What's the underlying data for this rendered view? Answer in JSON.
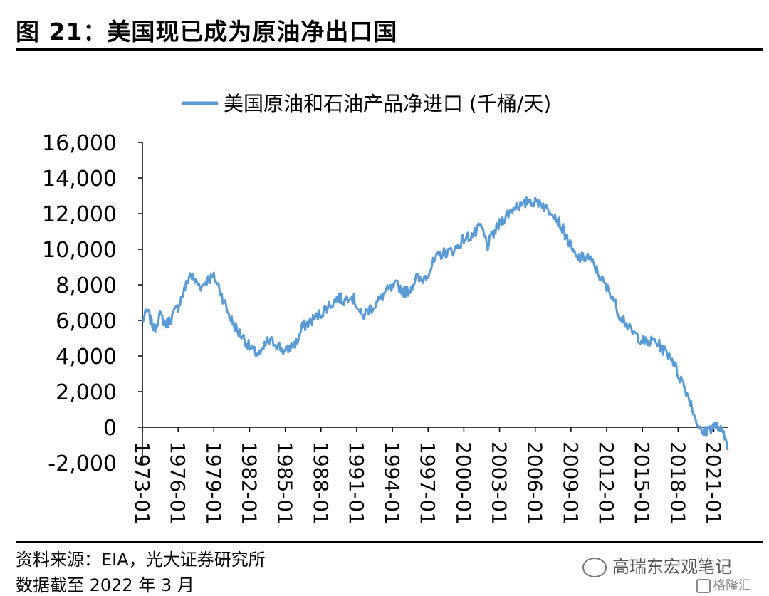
{
  "figure": {
    "title": "图 21：美国现已成为原油净出口国",
    "source": "资料来源：EIA，光大证券研究所",
    "date_note": "数据截至 2022 年 3 月",
    "watermark": "高瑞东宏观笔记",
    "logo_text": "格隆汇"
  },
  "colors": {
    "series": "#5b9bd5",
    "axis": "#000000"
  },
  "chart_data": {
    "type": "line",
    "title": "",
    "xlabel": "",
    "ylabel": "",
    "ylim": [
      -2000,
      16000
    ],
    "yticks": [
      "16,000",
      "14,000",
      "12,000",
      "10,000",
      "8,000",
      "6,000",
      "4,000",
      "2,000",
      "0",
      "-2,000"
    ],
    "ytick_values": [
      16000,
      14000,
      12000,
      10000,
      8000,
      6000,
      4000,
      2000,
      0,
      -2000
    ],
    "xticks": [
      "1973-01",
      "1976-01",
      "1979-01",
      "1982-01",
      "1985-01",
      "1988-01",
      "1991-01",
      "1994-01",
      "1997-01",
      "2000-01",
      "2003-01",
      "2006-01",
      "2009-01",
      "2012-01",
      "2015-01",
      "2018-01",
      "2021-01"
    ],
    "xtick_years": [
      1973,
      1976,
      1979,
      1982,
      1985,
      1988,
      1991,
      1994,
      1997,
      2000,
      2003,
      2006,
      2009,
      2012,
      2015,
      2018,
      2021
    ],
    "xlim": [
      "1973-01",
      "2022-03"
    ],
    "legend": "top-center",
    "grid": false,
    "series": [
      {
        "name": "美国原油和石油产品净进口 (千桶/天)",
        "x": [
          "1973-01",
          "1973-06",
          "1974-01",
          "1974-06",
          "1975-01",
          "1975-06",
          "1976-01",
          "1976-06",
          "1977-01",
          "1977-06",
          "1978-01",
          "1978-06",
          "1979-01",
          "1979-06",
          "1980-01",
          "1980-06",
          "1981-01",
          "1981-06",
          "1982-01",
          "1982-06",
          "1983-01",
          "1983-06",
          "1984-01",
          "1984-06",
          "1985-01",
          "1985-06",
          "1986-01",
          "1986-06",
          "1987-01",
          "1987-06",
          "1988-01",
          "1988-06",
          "1989-01",
          "1989-06",
          "1990-01",
          "1990-06",
          "1991-01",
          "1991-06",
          "1992-01",
          "1992-06",
          "1993-01",
          "1993-06",
          "1994-01",
          "1994-06",
          "1995-01",
          "1995-06",
          "1996-01",
          "1996-06",
          "1997-01",
          "1997-06",
          "1998-01",
          "1998-06",
          "1999-01",
          "1999-06",
          "2000-01",
          "2000-06",
          "2001-01",
          "2001-06",
          "2002-01",
          "2002-06",
          "2003-01",
          "2003-06",
          "2004-01",
          "2004-06",
          "2005-01",
          "2005-06",
          "2006-01",
          "2006-06",
          "2007-01",
          "2007-06",
          "2008-01",
          "2008-06",
          "2009-01",
          "2009-06",
          "2010-01",
          "2010-06",
          "2011-01",
          "2011-06",
          "2012-01",
          "2012-06",
          "2013-01",
          "2013-06",
          "2014-01",
          "2014-06",
          "2015-01",
          "2015-06",
          "2016-01",
          "2016-06",
          "2017-01",
          "2017-06",
          "2018-01",
          "2018-06",
          "2019-01",
          "2019-06",
          "2020-01",
          "2020-06",
          "2021-01",
          "2021-06",
          "2022-01",
          "2022-03"
        ],
        "y": [
          6000,
          6500,
          5500,
          6300,
          5800,
          6100,
          6800,
          7500,
          8600,
          8200,
          7900,
          8300,
          8400,
          7900,
          6800,
          6100,
          5400,
          5100,
          4500,
          4200,
          4100,
          4800,
          4800,
          4600,
          4200,
          4500,
          4800,
          5600,
          5900,
          6100,
          6400,
          6700,
          7000,
          7300,
          7100,
          7500,
          6900,
          6200,
          6600,
          6800,
          7200,
          7600,
          7800,
          8000,
          7600,
          7700,
          8400,
          8200,
          8700,
          9200,
          9700,
          9800,
          9900,
          10100,
          10600,
          10700,
          10900,
          11300,
          10200,
          10800,
          11400,
          11800,
          12200,
          12500,
          12400,
          12800,
          12600,
          12700,
          12200,
          12200,
          11500,
          11000,
          10100,
          9500,
          9500,
          9600,
          9000,
          8500,
          7800,
          7500,
          6400,
          6100,
          5400,
          5200,
          4900,
          4700,
          4900,
          4600,
          4200,
          4000,
          3000,
          2500,
          1500,
          600,
          -400,
          -200,
          100,
          0,
          -700,
          -1000
        ]
      }
    ]
  }
}
